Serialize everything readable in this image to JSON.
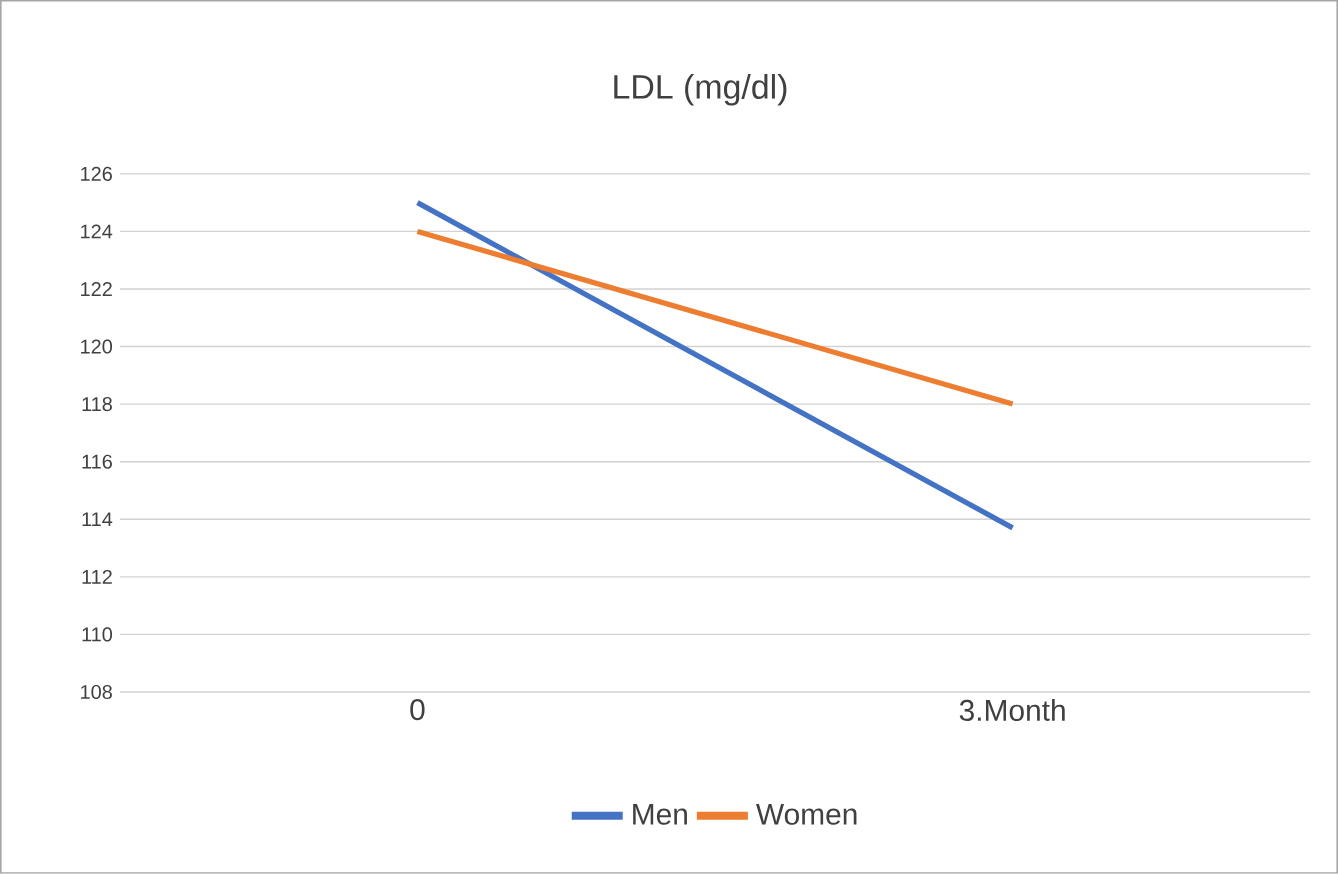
{
  "chart_data": {
    "type": "line",
    "title": "LDL (mg/dl)",
    "categories": [
      "0",
      "3.Month"
    ],
    "series": [
      {
        "name": "Men",
        "color": "#4472c4",
        "values": [
          125,
          113.7
        ]
      },
      {
        "name": "Women",
        "color": "#ed7d31",
        "values": [
          124,
          118
        ]
      }
    ],
    "ylim": [
      108,
      126
    ],
    "yticks": [
      108,
      110,
      112,
      114,
      116,
      118,
      120,
      122,
      124,
      126
    ],
    "grid": "y",
    "legend": "bottom",
    "marker": "none",
    "line_style": "solid"
  }
}
